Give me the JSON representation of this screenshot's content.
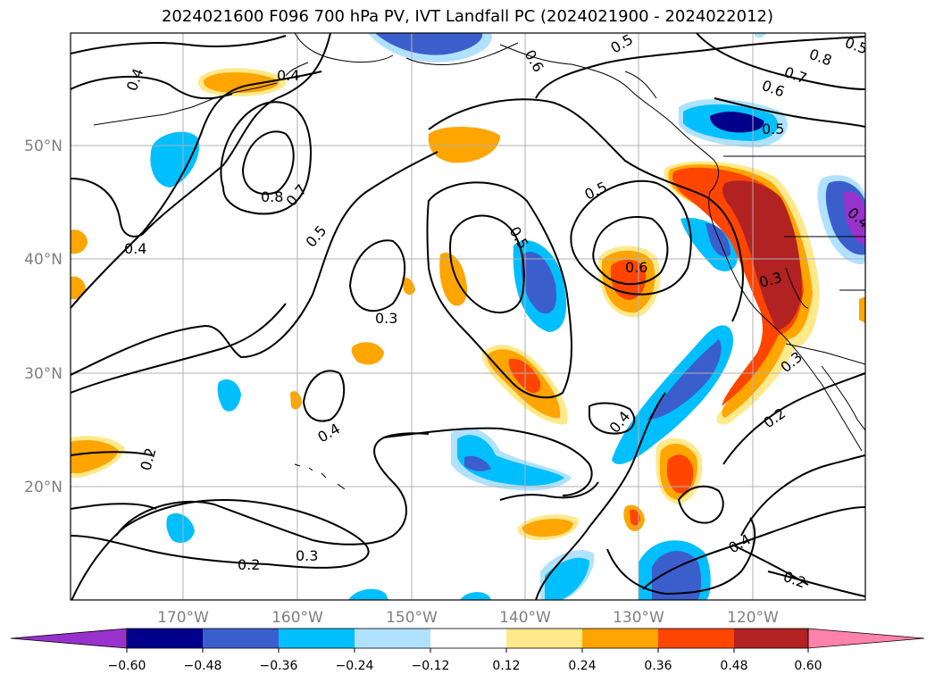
{
  "title": "2024021600 F096 700 hPa PV, IVT Landfall PC (2024021900 - 2024022012)",
  "map": {
    "lat_labels": [
      "50°N",
      "40°N",
      "30°N",
      "20°N"
    ],
    "lon_labels": [
      "170°W",
      "160°W",
      "150°W",
      "140°W",
      "130°W",
      "120°W"
    ],
    "extent": {
      "lon_min": -180,
      "lon_max": -110,
      "lat_min": 10,
      "lat_max": 60
    }
  },
  "contour_labels": [
    "0.4",
    "0.5",
    "0.6",
    "0.5",
    "0.7",
    "0.8",
    "0.6",
    "0.5",
    "0.4",
    "0.8",
    "0.7",
    "0.5",
    "0.5",
    "0.5",
    "0.6",
    "0.4",
    "0.3",
    "0.3",
    "0.4",
    "0.2",
    "0.2",
    "0.3",
    "0.4",
    "0.2",
    "0.3",
    "0.4",
    "0.2",
    "0.4"
  ],
  "colorbar": {
    "ticks": [
      "−0.60",
      "−0.48",
      "−0.36",
      "−0.24",
      "−0.12",
      "0.12",
      "0.24",
      "0.36",
      "0.48",
      "0.60"
    ],
    "colors": [
      "#9932cc",
      "#00008b",
      "#3a5fcd",
      "#00bfff",
      "#b0e2ff",
      "#ffffff",
      "#ffe98a",
      "#ffa500",
      "#ff4500",
      "#b22222",
      "#ff82ab"
    ]
  }
}
